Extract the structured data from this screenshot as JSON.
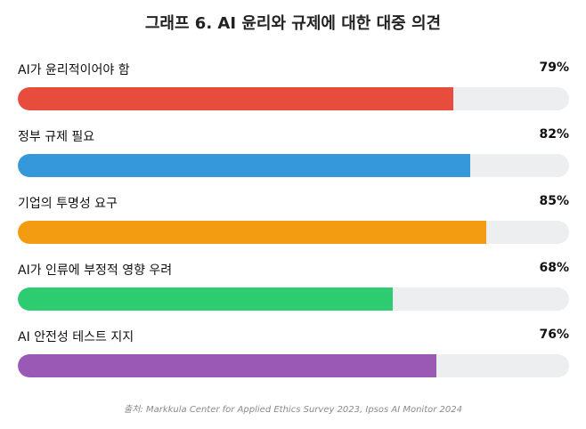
{
  "chart_data": {
    "type": "bar",
    "title": "그래프 6. AI 윤리와 규제에 대한 대중 의견",
    "categories": [
      "AI가 윤리적이어야 함",
      "정부 규제 필요",
      "기업의 투명성 요구",
      "AI가 인류에 부정적 영향 우려",
      "AI 안전성 테스트 지지"
    ],
    "values": [
      79,
      82,
      85,
      68,
      76
    ],
    "value_labels": [
      "79%",
      "82%",
      "85%",
      "68%",
      "76%"
    ],
    "colors": [
      "#e74c3c",
      "#3498db",
      "#f39c12",
      "#2ecc71",
      "#9b59b6"
    ],
    "xlim": [
      0,
      100
    ],
    "orientation": "horizontal",
    "source": "출처: Markkula Center for Applied Ethics Survey 2023, Ipsos AI Monitor 2024"
  }
}
